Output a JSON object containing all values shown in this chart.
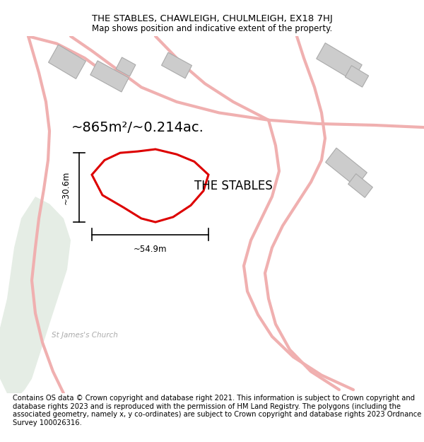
{
  "title": "THE STABLES, CHAWLEIGH, CHULMLEIGH, EX18 7HJ",
  "subtitle": "Map shows position and indicative extent of the property.",
  "footer": "Contains OS data © Crown copyright and database right 2021. This information is subject to Crown copyright and database rights 2023 and is reproduced with the permission of HM Land Registry. The polygons (including the associated geometry, namely x, y co-ordinates) are subject to Crown copyright and database rights 2023 Ordnance Survey 100026316.",
  "property_label": "THE STABLES",
  "area_label": "~865m²/~0.214ac.",
  "width_label": "~54.9m",
  "height_label": "~30.6m",
  "church_label": "St James's Church",
  "bg_color": "#ffffff",
  "property_outline": "#dd0000",
  "road_color": "#f0b0b0",
  "building_color": "#cccccc",
  "building_outline": "#aaaaaa",
  "green_area_fill": "#e5ede5",
  "title_fontsize": 9.5,
  "subtitle_fontsize": 8.5,
  "footer_fontsize": 7.2,
  "label_fontsize": 12,
  "area_fontsize": 14,
  "church_fontsize": 7.5,
  "dim_fontsize": 8.5
}
